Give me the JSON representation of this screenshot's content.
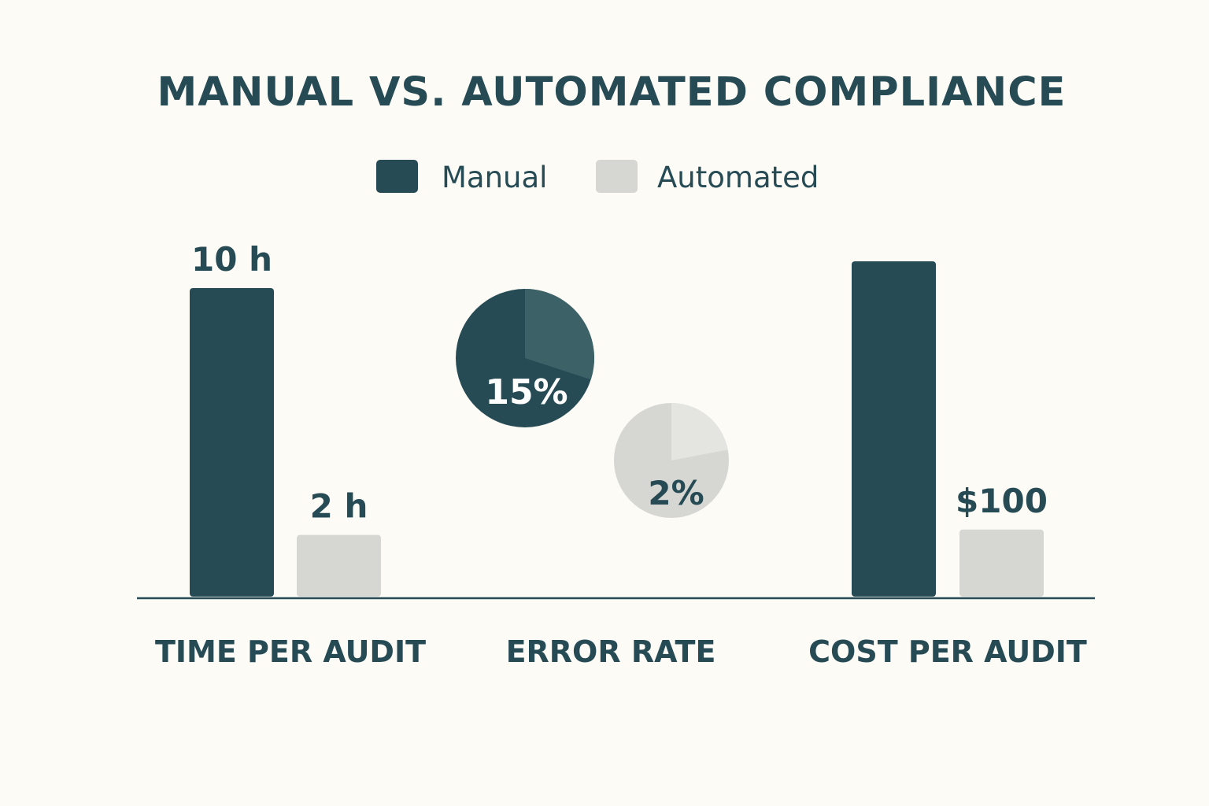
{
  "chart_data": {
    "type": "bar",
    "title": "MANUAL VS. AUTOMATED COMPLIANCE",
    "legend": [
      {
        "name": "Manual",
        "color": "#274b55"
      },
      {
        "name": "Automated",
        "color": "#d6d6d3"
      }
    ],
    "legend_position": "top-center",
    "groups": [
      {
        "category": "TIME PER AUDIT",
        "mark": "bar",
        "unit": "h",
        "values": {
          "Manual": 10,
          "Automated": 2
        },
        "labels": {
          "Manual": "10 h",
          "Automated": "2 h"
        }
      },
      {
        "category": "ERROR RATE",
        "mark": "pie",
        "unit": "%",
        "values": {
          "Manual": 15,
          "Automated": 2
        },
        "labels": {
          "Manual": "15%",
          "Automated": "2%"
        }
      },
      {
        "category": "COST PER AUDIT",
        "mark": "bar",
        "unit": "$",
        "values": {
          "Manual": 500,
          "Automated": 100
        },
        "labels": {
          "Manual": "",
          "Automated": "$100"
        }
      }
    ],
    "grid": false,
    "xlabel": "",
    "ylabel": ""
  }
}
